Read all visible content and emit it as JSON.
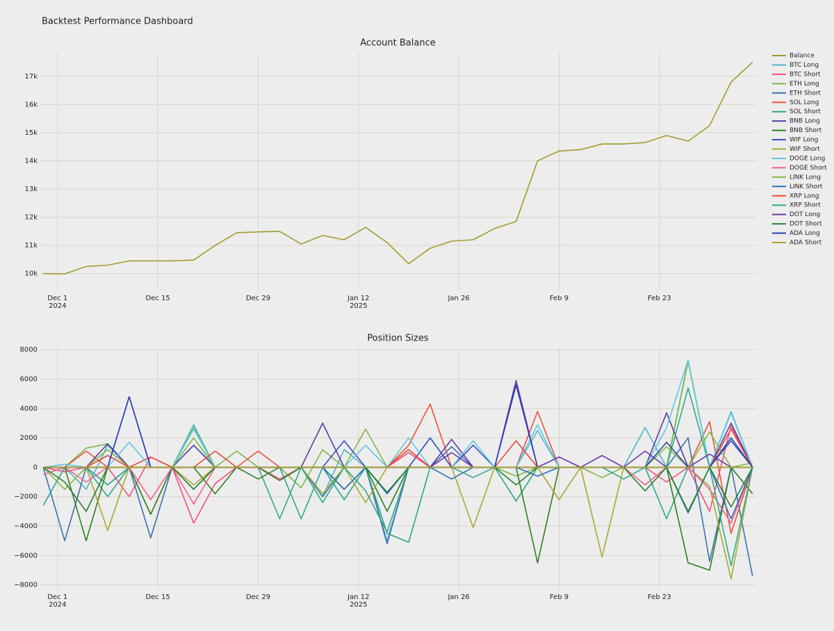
{
  "title": "Backtest Performance Dashboard",
  "chart_data": [
    {
      "type": "line",
      "title": "Account Balance",
      "x": [
        "2024-11-29",
        "2024-12-02",
        "2024-12-05",
        "2024-12-08",
        "2024-12-11",
        "2024-12-14",
        "2024-12-17",
        "2024-12-20",
        "2024-12-23",
        "2024-12-26",
        "2024-12-29",
        "2025-01-01",
        "2025-01-04",
        "2025-01-07",
        "2025-01-10",
        "2025-01-13",
        "2025-01-16",
        "2025-01-19",
        "2025-01-22",
        "2025-01-25",
        "2025-01-28",
        "2025-01-31",
        "2025-02-03",
        "2025-02-06",
        "2025-02-09",
        "2025-02-12",
        "2025-02-15",
        "2025-02-18",
        "2025-02-21",
        "2025-02-24",
        "2025-02-27",
        "2025-03-02",
        "2025-03-05",
        "2025-03-08"
      ],
      "xlim": [
        "2024-11-28T12:00",
        "2025-03-08T12:00"
      ],
      "xticks": [
        {
          "value": "2024-12-01",
          "label": "Dec 1\n2024"
        },
        {
          "value": "2024-12-15",
          "label": "Dec 15"
        },
        {
          "value": "2024-12-29",
          "label": "Dec 29"
        },
        {
          "value": "2025-01-12",
          "label": "Jan 12\n2025"
        },
        {
          "value": "2025-01-26",
          "label": "Jan 26"
        },
        {
          "value": "2025-02-09",
          "label": "Feb 9"
        },
        {
          "value": "2025-02-23",
          "label": "Feb 23"
        }
      ],
      "ylim": [
        9400,
        17860
      ],
      "yticks": [
        {
          "value": 10000,
          "label": "10k"
        },
        {
          "value": 11000,
          "label": "11k"
        },
        {
          "value": 12000,
          "label": "12k"
        },
        {
          "value": 13000,
          "label": "13k"
        },
        {
          "value": 14000,
          "label": "14k"
        },
        {
          "value": 15000,
          "label": "15k"
        },
        {
          "value": 16000,
          "label": "16k"
        },
        {
          "value": 17000,
          "label": "17k"
        }
      ],
      "grid": true,
      "series": [
        {
          "name": "Balance",
          "color": "#a39a2c",
          "values": [
            10000,
            9990,
            10250,
            10300,
            10450,
            10450,
            10450,
            10480,
            11000,
            11450,
            11480,
            11500,
            11050,
            11350,
            11200,
            11640,
            11100,
            10350,
            10900,
            11150,
            11200,
            11600,
            11850,
            14000,
            14350,
            14400,
            14600,
            14600,
            14650,
            14900,
            14700,
            15250,
            16800,
            17500
          ]
        }
      ]
    },
    {
      "type": "line",
      "title": "Position Sizes",
      "x": [
        "2024-11-29",
        "2024-12-02",
        "2024-12-05",
        "2024-12-08",
        "2024-12-11",
        "2024-12-14",
        "2024-12-17",
        "2024-12-20",
        "2024-12-23",
        "2024-12-26",
        "2024-12-29",
        "2025-01-01",
        "2025-01-04",
        "2025-01-07",
        "2025-01-10",
        "2025-01-13",
        "2025-01-16",
        "2025-01-19",
        "2025-01-22",
        "2025-01-25",
        "2025-01-28",
        "2025-01-31",
        "2025-02-03",
        "2025-02-06",
        "2025-02-09",
        "2025-02-12",
        "2025-02-15",
        "2025-02-18",
        "2025-02-21",
        "2025-02-24",
        "2025-02-27",
        "2025-03-02",
        "2025-03-05",
        "2025-03-08"
      ],
      "xlim": [
        "2024-11-28T12:00",
        "2025-03-08T12:00"
      ],
      "xticks": [
        {
          "value": "2024-12-01",
          "label": "Dec 1\n2024"
        },
        {
          "value": "2024-12-15",
          "label": "Dec 15"
        },
        {
          "value": "2024-12-29",
          "label": "Dec 29"
        },
        {
          "value": "2025-01-12",
          "label": "Jan 12\n2025"
        },
        {
          "value": "2025-01-26",
          "label": "Jan 26"
        },
        {
          "value": "2025-02-09",
          "label": "Feb 9"
        },
        {
          "value": "2025-02-23",
          "label": "Feb 23"
        }
      ],
      "ylim": [
        -8300,
        8150
      ],
      "yticks": [
        {
          "value": -8000,
          "label": "−8000"
        },
        {
          "value": -6000,
          "label": "−6000"
        },
        {
          "value": -4000,
          "label": "−4000"
        },
        {
          "value": -2000,
          "label": "−2000"
        },
        0,
        2000,
        4000,
        6000,
        8000
      ],
      "grid": true,
      "series": [
        {
          "name": "BTC Long",
          "color": "#4cb5c9",
          "values": [
            0,
            0,
            -1500,
            1500,
            0,
            0,
            0,
            2900,
            0,
            0,
            0,
            0,
            0,
            -2000,
            1200,
            0,
            -5000,
            0,
            2000,
            0,
            0,
            0,
            0,
            2500,
            0,
            0,
            0,
            0,
            2700,
            0,
            7300,
            0,
            3800,
            0
          ]
        },
        {
          "name": "BTC Short",
          "color": "#f0507a",
          "values": [
            0,
            -300,
            0,
            0,
            -2000,
            700,
            0,
            -3800,
            -1100,
            0,
            0,
            -800,
            0,
            0,
            0,
            0,
            0,
            1000,
            0,
            0,
            0,
            0,
            0,
            0,
            0,
            0,
            0,
            0,
            0,
            -1000,
            0,
            -3000,
            2800,
            0
          ]
        },
        {
          "name": "ETH Long",
          "color": "#7ab648",
          "values": [
            0,
            0,
            1300,
            1600,
            0,
            -3200,
            0,
            2700,
            0,
            1100,
            0,
            0,
            -1400,
            1200,
            0,
            2600,
            0,
            0,
            0,
            0,
            0,
            0,
            -600,
            0,
            0,
            0,
            -700,
            0,
            0,
            0,
            7200,
            0,
            0,
            0
          ]
        },
        {
          "name": "ETH Short",
          "color": "#3a6fb0",
          "values": [
            0,
            -5000,
            0,
            -1200,
            0,
            -4800,
            0,
            0,
            0,
            0,
            0,
            0,
            0,
            -2000,
            0,
            0,
            -5200,
            0,
            0,
            1400,
            0,
            0,
            0,
            0,
            0,
            0,
            0,
            0,
            0,
            0,
            2000,
            -6400,
            0,
            -7400
          ]
        },
        {
          "name": "SOL Long",
          "color": "#e8503a",
          "values": [
            0,
            0,
            1100,
            0,
            0,
            700,
            0,
            1500,
            0,
            0,
            1100,
            0,
            0,
            0,
            0,
            0,
            0,
            1500,
            4300,
            0,
            0,
            0,
            0,
            3800,
            0,
            0,
            0,
            0,
            0,
            0,
            0,
            3100,
            -4500,
            0
          ]
        },
        {
          "name": "SOL Short",
          "color": "#2aa58a",
          "values": [
            -2600,
            0,
            0,
            -2000,
            0,
            0,
            0,
            0,
            0,
            0,
            0,
            0,
            -3500,
            0,
            -2200,
            0,
            -4500,
            -5100,
            0,
            0,
            0,
            0,
            -2300,
            0,
            0,
            0,
            0,
            -800,
            0,
            -3500,
            0,
            0,
            0,
            0
          ]
        },
        {
          "name": "BNB Long",
          "color": "#5a3aa0",
          "values": [
            0,
            0,
            0,
            1600,
            0,
            0,
            0,
            0,
            0,
            0,
            0,
            0,
            0,
            3000,
            0,
            0,
            0,
            0,
            0,
            1900,
            0,
            0,
            5900,
            0,
            0,
            0,
            0,
            0,
            0,
            3700,
            0,
            0,
            3000,
            0
          ]
        },
        {
          "name": "BNB Short",
          "color": "#2e7d1e",
          "values": [
            0,
            0,
            -5000,
            0,
            0,
            -3200,
            0,
            0,
            -1800,
            0,
            0,
            -900,
            0,
            0,
            -1500,
            0,
            -3000,
            0,
            0,
            0,
            0,
            0,
            0,
            -6500,
            0,
            0,
            0,
            0,
            0,
            0,
            -6500,
            -7000,
            0,
            -1800
          ]
        },
        {
          "name": "WIF Long",
          "color": "#3a4fc0",
          "values": [
            0,
            0,
            0,
            0,
            4800,
            0,
            0,
            1500,
            0,
            0,
            0,
            0,
            0,
            0,
            1800,
            0,
            0,
            0,
            2000,
            0,
            1500,
            0,
            0,
            0,
            0,
            0,
            0,
            0,
            0,
            0,
            0,
            0,
            1800,
            0
          ]
        },
        {
          "name": "WIF Short",
          "color": "#a8a830",
          "values": [
            0,
            0,
            0,
            -4300,
            0,
            0,
            0,
            -1200,
            0,
            0,
            0,
            0,
            0,
            -1800,
            0,
            -2400,
            0,
            0,
            0,
            0,
            -4100,
            0,
            0,
            0,
            -2200,
            0,
            -6100,
            0,
            0,
            0,
            0,
            -1300,
            -7600,
            0
          ]
        },
        {
          "name": "DOGE Long",
          "color": "#5ec8e0",
          "values": [
            0,
            200,
            0,
            0,
            1700,
            0,
            0,
            2600,
            0,
            0,
            0,
            0,
            0,
            0,
            0,
            1500,
            0,
            2000,
            0,
            0,
            1800,
            0,
            0,
            2900,
            0,
            0,
            0,
            0,
            0,
            2700,
            7300,
            0,
            3700,
            0
          ]
        },
        {
          "name": "DOGE Short",
          "color": "#f06090",
          "values": [
            -500,
            0,
            -1000,
            0,
            0,
            -2200,
            0,
            -2500,
            0,
            0,
            0,
            0,
            0,
            0,
            0,
            0,
            0,
            0,
            0,
            0,
            0,
            0,
            0,
            0,
            0,
            0,
            0,
            0,
            -1200,
            0,
            0,
            -1500,
            -3800,
            0
          ]
        },
        {
          "name": "LINK Long",
          "color": "#80b840",
          "values": [
            0,
            -1500,
            0,
            1200,
            0,
            0,
            0,
            2000,
            0,
            0,
            0,
            0,
            0,
            0,
            0,
            0,
            0,
            0,
            0,
            0,
            0,
            0,
            0,
            0,
            0,
            0,
            0,
            0,
            0,
            1400,
            0,
            2400,
            0,
            300
          ]
        },
        {
          "name": "LINK Short",
          "color": "#2a70b8",
          "values": [
            0,
            0,
            0,
            0,
            0,
            0,
            0,
            0,
            0,
            0,
            0,
            0,
            0,
            0,
            -1500,
            0,
            -1800,
            0,
            0,
            -800,
            0,
            0,
            0,
            -600,
            0,
            0,
            0,
            0,
            0,
            0,
            -3100,
            0,
            -3500,
            0
          ]
        },
        {
          "name": "XRP Long",
          "color": "#e84838",
          "values": [
            0,
            0,
            0,
            800,
            0,
            0,
            0,
            0,
            1100,
            0,
            0,
            0,
            0,
            0,
            0,
            0,
            0,
            1200,
            0,
            0,
            0,
            0,
            1800,
            0,
            0,
            0,
            0,
            0,
            0,
            0,
            0,
            0,
            2600,
            0
          ]
        },
        {
          "name": "XRP Short",
          "color": "#30a888",
          "values": [
            0,
            0,
            0,
            -1200,
            0,
            0,
            0,
            -1500,
            0,
            0,
            0,
            -3500,
            0,
            -2400,
            0,
            -1600,
            -4400,
            0,
            0,
            0,
            -700,
            0,
            0,
            0,
            0,
            0,
            0,
            0,
            0,
            0,
            5400,
            0,
            -6700,
            0
          ]
        },
        {
          "name": "DOT Long",
          "color": "#6a3aa8",
          "values": [
            0,
            0,
            0,
            0,
            0,
            0,
            0,
            0,
            0,
            0,
            0,
            0,
            0,
            0,
            0,
            0,
            0,
            0,
            0,
            1000,
            0,
            0,
            0,
            0,
            700,
            0,
            800,
            0,
            1100,
            0,
            0,
            900,
            0,
            0
          ]
        },
        {
          "name": "DOT Short",
          "color": "#2a8030",
          "values": [
            0,
            -1000,
            -3000,
            0,
            0,
            0,
            0,
            -1500,
            0,
            0,
            -800,
            0,
            0,
            0,
            0,
            0,
            -1700,
            0,
            0,
            0,
            0,
            0,
            -1200,
            0,
            0,
            0,
            0,
            0,
            -1600,
            0,
            -3000,
            0,
            -2700,
            0
          ]
        },
        {
          "name": "ADA Long",
          "color": "#2840b0",
          "values": [
            0,
            0,
            0,
            0,
            4800,
            0,
            0,
            0,
            0,
            0,
            0,
            0,
            0,
            0,
            0,
            0,
            0,
            0,
            0,
            0,
            0,
            0,
            5600,
            0,
            0,
            0,
            0,
            0,
            0,
            1700,
            0,
            0,
            2000,
            0
          ]
        },
        {
          "name": "ADA Short",
          "color": "#b0a020",
          "values": [
            0,
            0,
            0,
            0,
            0,
            0,
            0,
            0,
            0,
            0,
            0,
            0,
            0,
            0,
            0,
            0,
            0,
            0,
            0,
            0,
            0,
            0,
            0,
            0,
            0,
            0,
            0,
            0,
            0,
            0,
            0,
            0,
            0,
            0
          ]
        }
      ]
    }
  ]
}
